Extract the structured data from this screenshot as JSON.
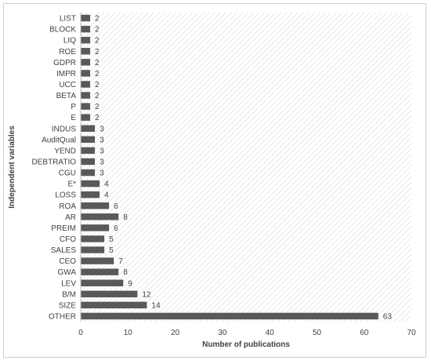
{
  "chart_data": {
    "type": "bar",
    "orientation": "horizontal",
    "categories": [
      "LIST",
      "BLOCK",
      "LIQ",
      "ROE",
      "GDPR",
      "IMPR",
      "UCC",
      "BETA",
      "P",
      "E",
      "INDUS",
      "AuditQual",
      "YEND",
      "DEBTRATIO",
      "CGU",
      "E*",
      "LOSS",
      "ROA",
      "AR",
      "PREIM",
      "CFO",
      "SALES",
      "CEO",
      "GWA",
      "LEV",
      "B/M",
      "SIZE",
      "OTHER"
    ],
    "values": [
      2,
      2,
      2,
      2,
      2,
      2,
      2,
      2,
      2,
      2,
      3,
      3,
      3,
      3,
      3,
      4,
      4,
      6,
      8,
      6,
      5,
      5,
      7,
      8,
      9,
      12,
      14,
      63
    ],
    "xlabel": "Number of publications",
    "ylabel": "Independent variables",
    "xlim": [
      0,
      70
    ],
    "xticks": [
      "0",
      "10",
      "20",
      "30",
      "40",
      "50",
      "60",
      "70"
    ],
    "bar_color": "#595959",
    "plot_background": "diagonal-hatch",
    "grid": false,
    "legend": "none"
  }
}
